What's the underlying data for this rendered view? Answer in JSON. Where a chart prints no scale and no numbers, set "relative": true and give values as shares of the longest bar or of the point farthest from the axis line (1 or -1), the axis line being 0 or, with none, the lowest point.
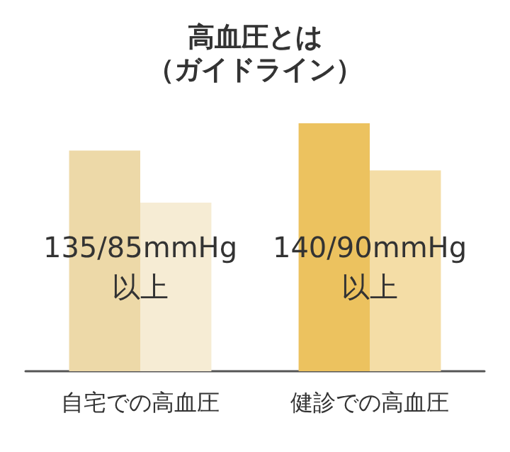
{
  "chart_data": {
    "type": "bar",
    "title": "高血圧とは",
    "subtitle": "（ガイドライン）",
    "relative": true,
    "categories": [
      "自宅での高血圧",
      "健診での高血圧"
    ],
    "series": [
      {
        "colors": [
          "#edd9a8",
          "#ecc25f"
        ],
        "values": [
          0.89,
          1
        ]
      },
      {
        "colors": [
          "#f6ecd4",
          "#f4dda6"
        ],
        "values": [
          0.68,
          0.81
        ]
      }
    ],
    "annotations": [
      {
        "text": "135/85mmHg",
        "x": "自宅での高血圧"
      },
      {
        "text": "以上",
        "x": "自宅での高血圧"
      },
      {
        "text": "140/90mmHg",
        "x": "健診での高血圧"
      },
      {
        "text": "以上",
        "x": "健診での高血圧"
      }
    ]
  }
}
